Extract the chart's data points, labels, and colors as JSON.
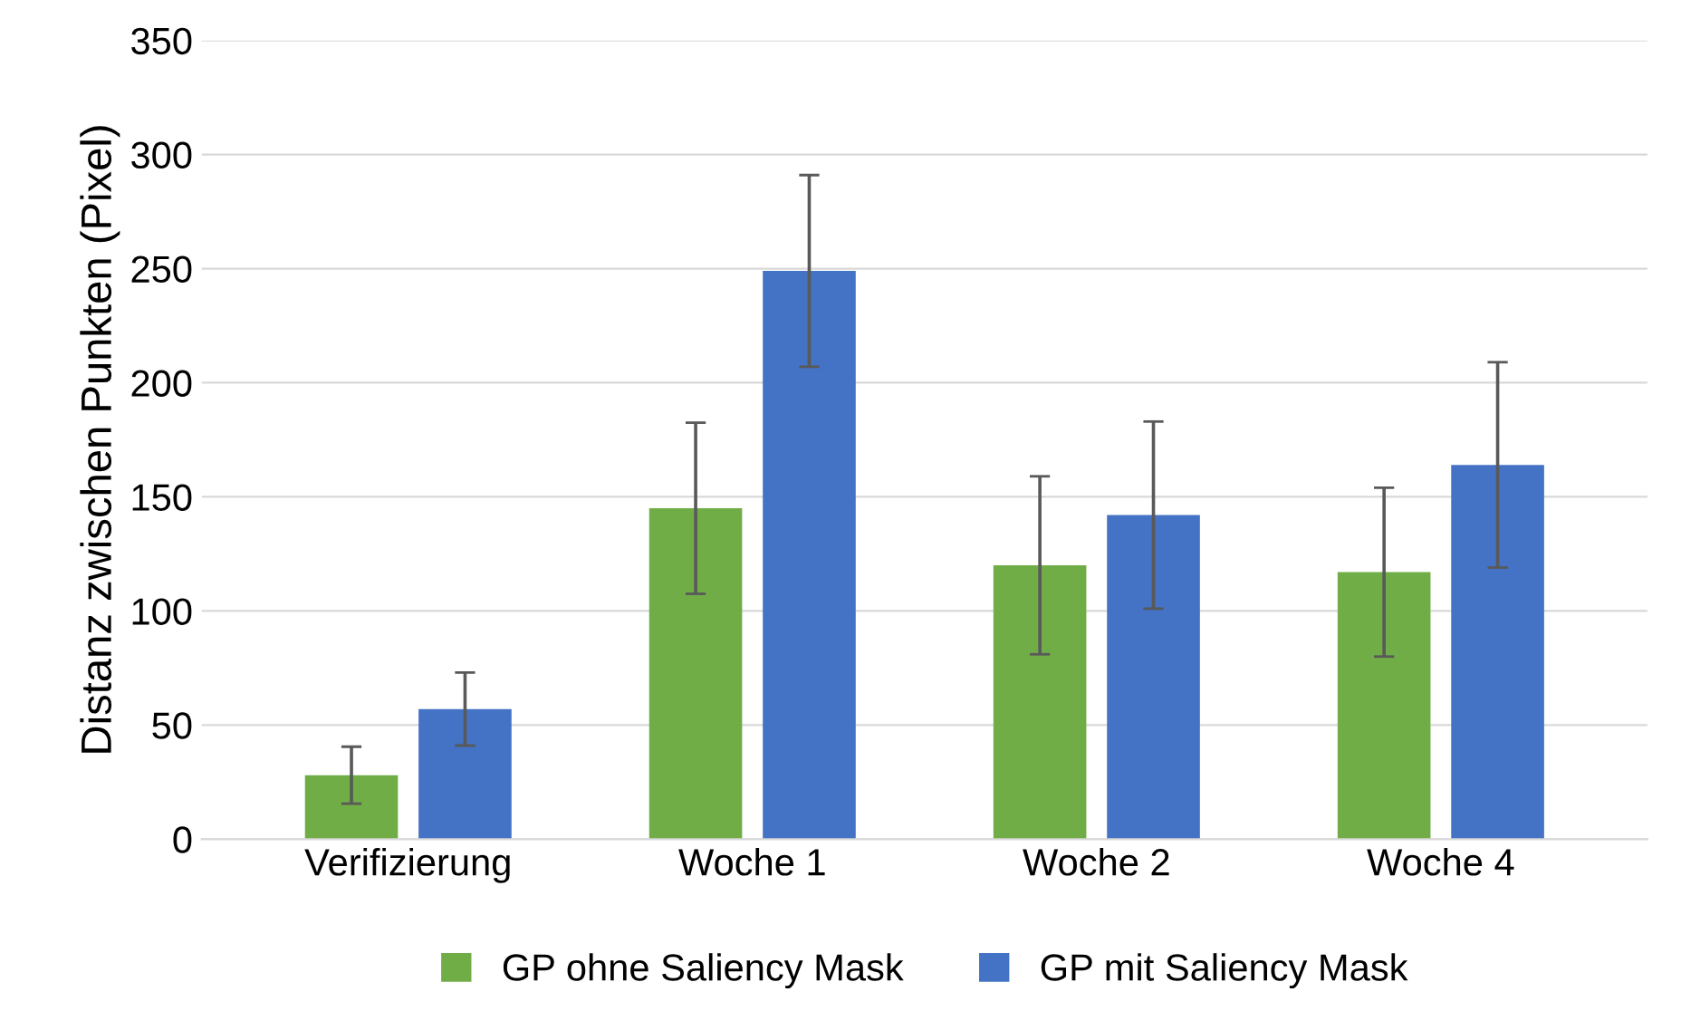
{
  "chart_data": {
    "type": "bar",
    "ylabel": "Distanz zwischen Punkten (Pixel)",
    "categories": [
      "Verifizierung",
      "Woche 1",
      "Woche 2",
      "Woche 4"
    ],
    "series": [
      {
        "name": "GP ohne Saliency Mask",
        "color": "#70ad47",
        "values": [
          28,
          145,
          120,
          117
        ],
        "errors": [
          12.5,
          37.5,
          39,
          37
        ]
      },
      {
        "name": "GP mit Saliency Mask",
        "color": "#4472c4",
        "values": [
          57,
          249,
          142,
          164
        ],
        "errors": [
          16,
          42,
          41,
          45
        ]
      }
    ],
    "ylim": [
      0,
      350
    ],
    "yticks": [
      0,
      50,
      100,
      150,
      200,
      250,
      300,
      350
    ],
    "grid": "y",
    "legend": "bottom"
  }
}
